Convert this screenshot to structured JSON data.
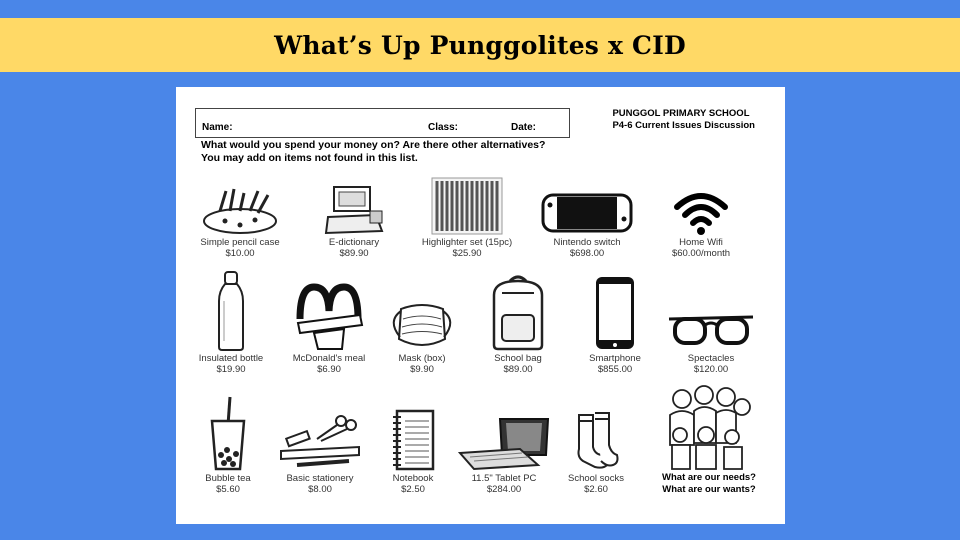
{
  "banner_title": "What’s Up Punggolites x CID",
  "sheet": {
    "name_label": "Name:",
    "class_label": "Class:",
    "date_label": "Date:",
    "school_line1": "PUNGGOL PRIMARY SCHOOL",
    "school_line2": "P4-6 Current Issues Discussion",
    "question_line1": "What would you spend your money on? Are there other alternatives?",
    "question_line2": "You may add on items not found in this list.",
    "items": [
      {
        "label": "Simple pencil case",
        "price": "$10.00",
        "icon": "pencil-case-icon"
      },
      {
        "label": "E-dictionary",
        "price": "$89.90",
        "icon": "e-dictionary-icon"
      },
      {
        "label": "Highlighter set (15pc)",
        "price": "$25.90",
        "icon": "highlighter-set-icon"
      },
      {
        "label": "Nintendo switch",
        "price": "$698.00",
        "icon": "nintendo-switch-icon"
      },
      {
        "label": "Home Wifi",
        "price": "$60.00/month",
        "icon": "wifi-icon"
      },
      {
        "label": "Insulated bottle",
        "price": "$19.90",
        "icon": "bottle-icon"
      },
      {
        "label": "McDonald's meal",
        "price": "$6.90",
        "icon": "mcdonalds-icon"
      },
      {
        "label": "Mask (box)",
        "price": "$9.90",
        "icon": "mask-icon"
      },
      {
        "label": "School bag",
        "price": "$89.00",
        "icon": "school-bag-icon"
      },
      {
        "label": "Smartphone",
        "price": "$855.00",
        "icon": "smartphone-icon"
      },
      {
        "label": "Spectacles",
        "price": "$120.00",
        "icon": "spectacles-icon"
      },
      {
        "label": "Bubble tea",
        "price": "$5.60",
        "icon": "bubble-tea-icon"
      },
      {
        "label": "Basic stationery",
        "price": "$8.00",
        "icon": "stationery-icon"
      },
      {
        "label": "Notebook",
        "price": "$2.50",
        "icon": "notebook-icon"
      },
      {
        "label": "11.5\" Tablet PC",
        "price": "$284.00",
        "icon": "tablet-icon"
      },
      {
        "label": "School socks",
        "price": "$2.60",
        "icon": "socks-icon"
      }
    ],
    "needs_line1": "What are our needs?",
    "needs_line2": "What are our wants?"
  }
}
